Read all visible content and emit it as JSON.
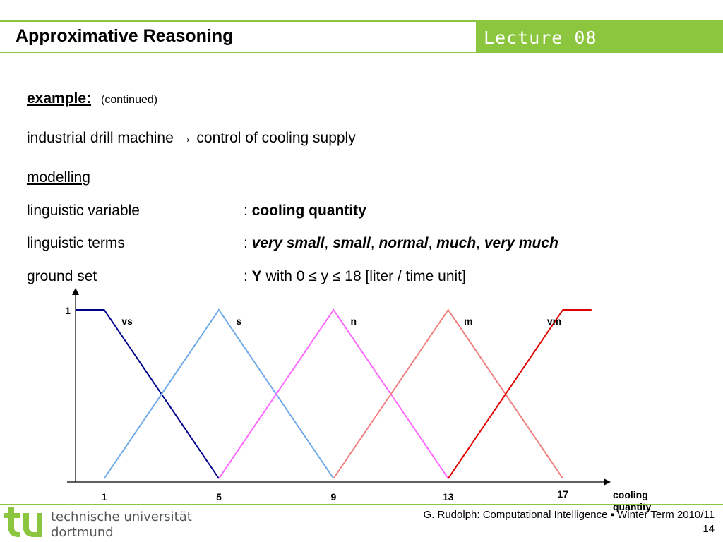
{
  "header": {
    "title": "Approximative Reasoning",
    "lecture": "Lecture 08",
    "accent_color": "#8cc63f"
  },
  "content": {
    "example_label": "example:",
    "example_note": "(continued)",
    "intro": "industrial drill machine → control of cooling supply",
    "modelling_label": "modelling",
    "rows": [
      {
        "label": "linguistic variable",
        "sep": ": ",
        "value": "cooling quantity"
      },
      {
        "label": "linguistic terms",
        "sep": ": ",
        "terms": [
          "very small",
          "small",
          "normal",
          "much",
          "very much"
        ],
        "term_sep": ", "
      },
      {
        "label": "ground set",
        "sep": ": ",
        "set_symbol": "Y",
        "set_rest": " with 0 ≤ y ≤ 18 [liter / time unit]"
      }
    ]
  },
  "chart_data": {
    "type": "line",
    "xlabel": "cooling quantity",
    "xlim": [
      0,
      18
    ],
    "ylim": [
      0,
      1
    ],
    "x_ticks": [
      1,
      5,
      9,
      13,
      17
    ],
    "y_ticks": [
      1
    ],
    "series": [
      {
        "name": "vs",
        "color": "#00008b",
        "points": [
          [
            0,
            1
          ],
          [
            1,
            1
          ],
          [
            5,
            0
          ]
        ]
      },
      {
        "name": "s",
        "color": "#6fa8e8",
        "points": [
          [
            1,
            0
          ],
          [
            5,
            1
          ],
          [
            9,
            0
          ]
        ]
      },
      {
        "name": "n",
        "color": "#ff66ff",
        "points": [
          [
            5,
            0
          ],
          [
            9,
            1
          ],
          [
            13,
            0
          ]
        ]
      },
      {
        "name": "m",
        "color": "#f08080",
        "points": [
          [
            9,
            0
          ],
          [
            13,
            1
          ],
          [
            17,
            0
          ]
        ]
      },
      {
        "name": "vm",
        "color": "#e00000",
        "points": [
          [
            13,
            0
          ],
          [
            17,
            1
          ],
          [
            18,
            1
          ]
        ]
      }
    ],
    "labels": [
      {
        "text": "vs",
        "x": 1.8
      },
      {
        "text": "s",
        "x": 5.7
      },
      {
        "text": "n",
        "x": 9.7
      },
      {
        "text": "m",
        "x": 13.7
      },
      {
        "text": "vm",
        "x": 16.7
      }
    ]
  },
  "logo": {
    "name": "tu-logo-icon",
    "line1": "technische universität",
    "line2": "dortmund"
  },
  "footer": {
    "credit": "G. Rudolph: Computational Intelligence ▪ Winter Term 2010/11",
    "page": "14"
  }
}
